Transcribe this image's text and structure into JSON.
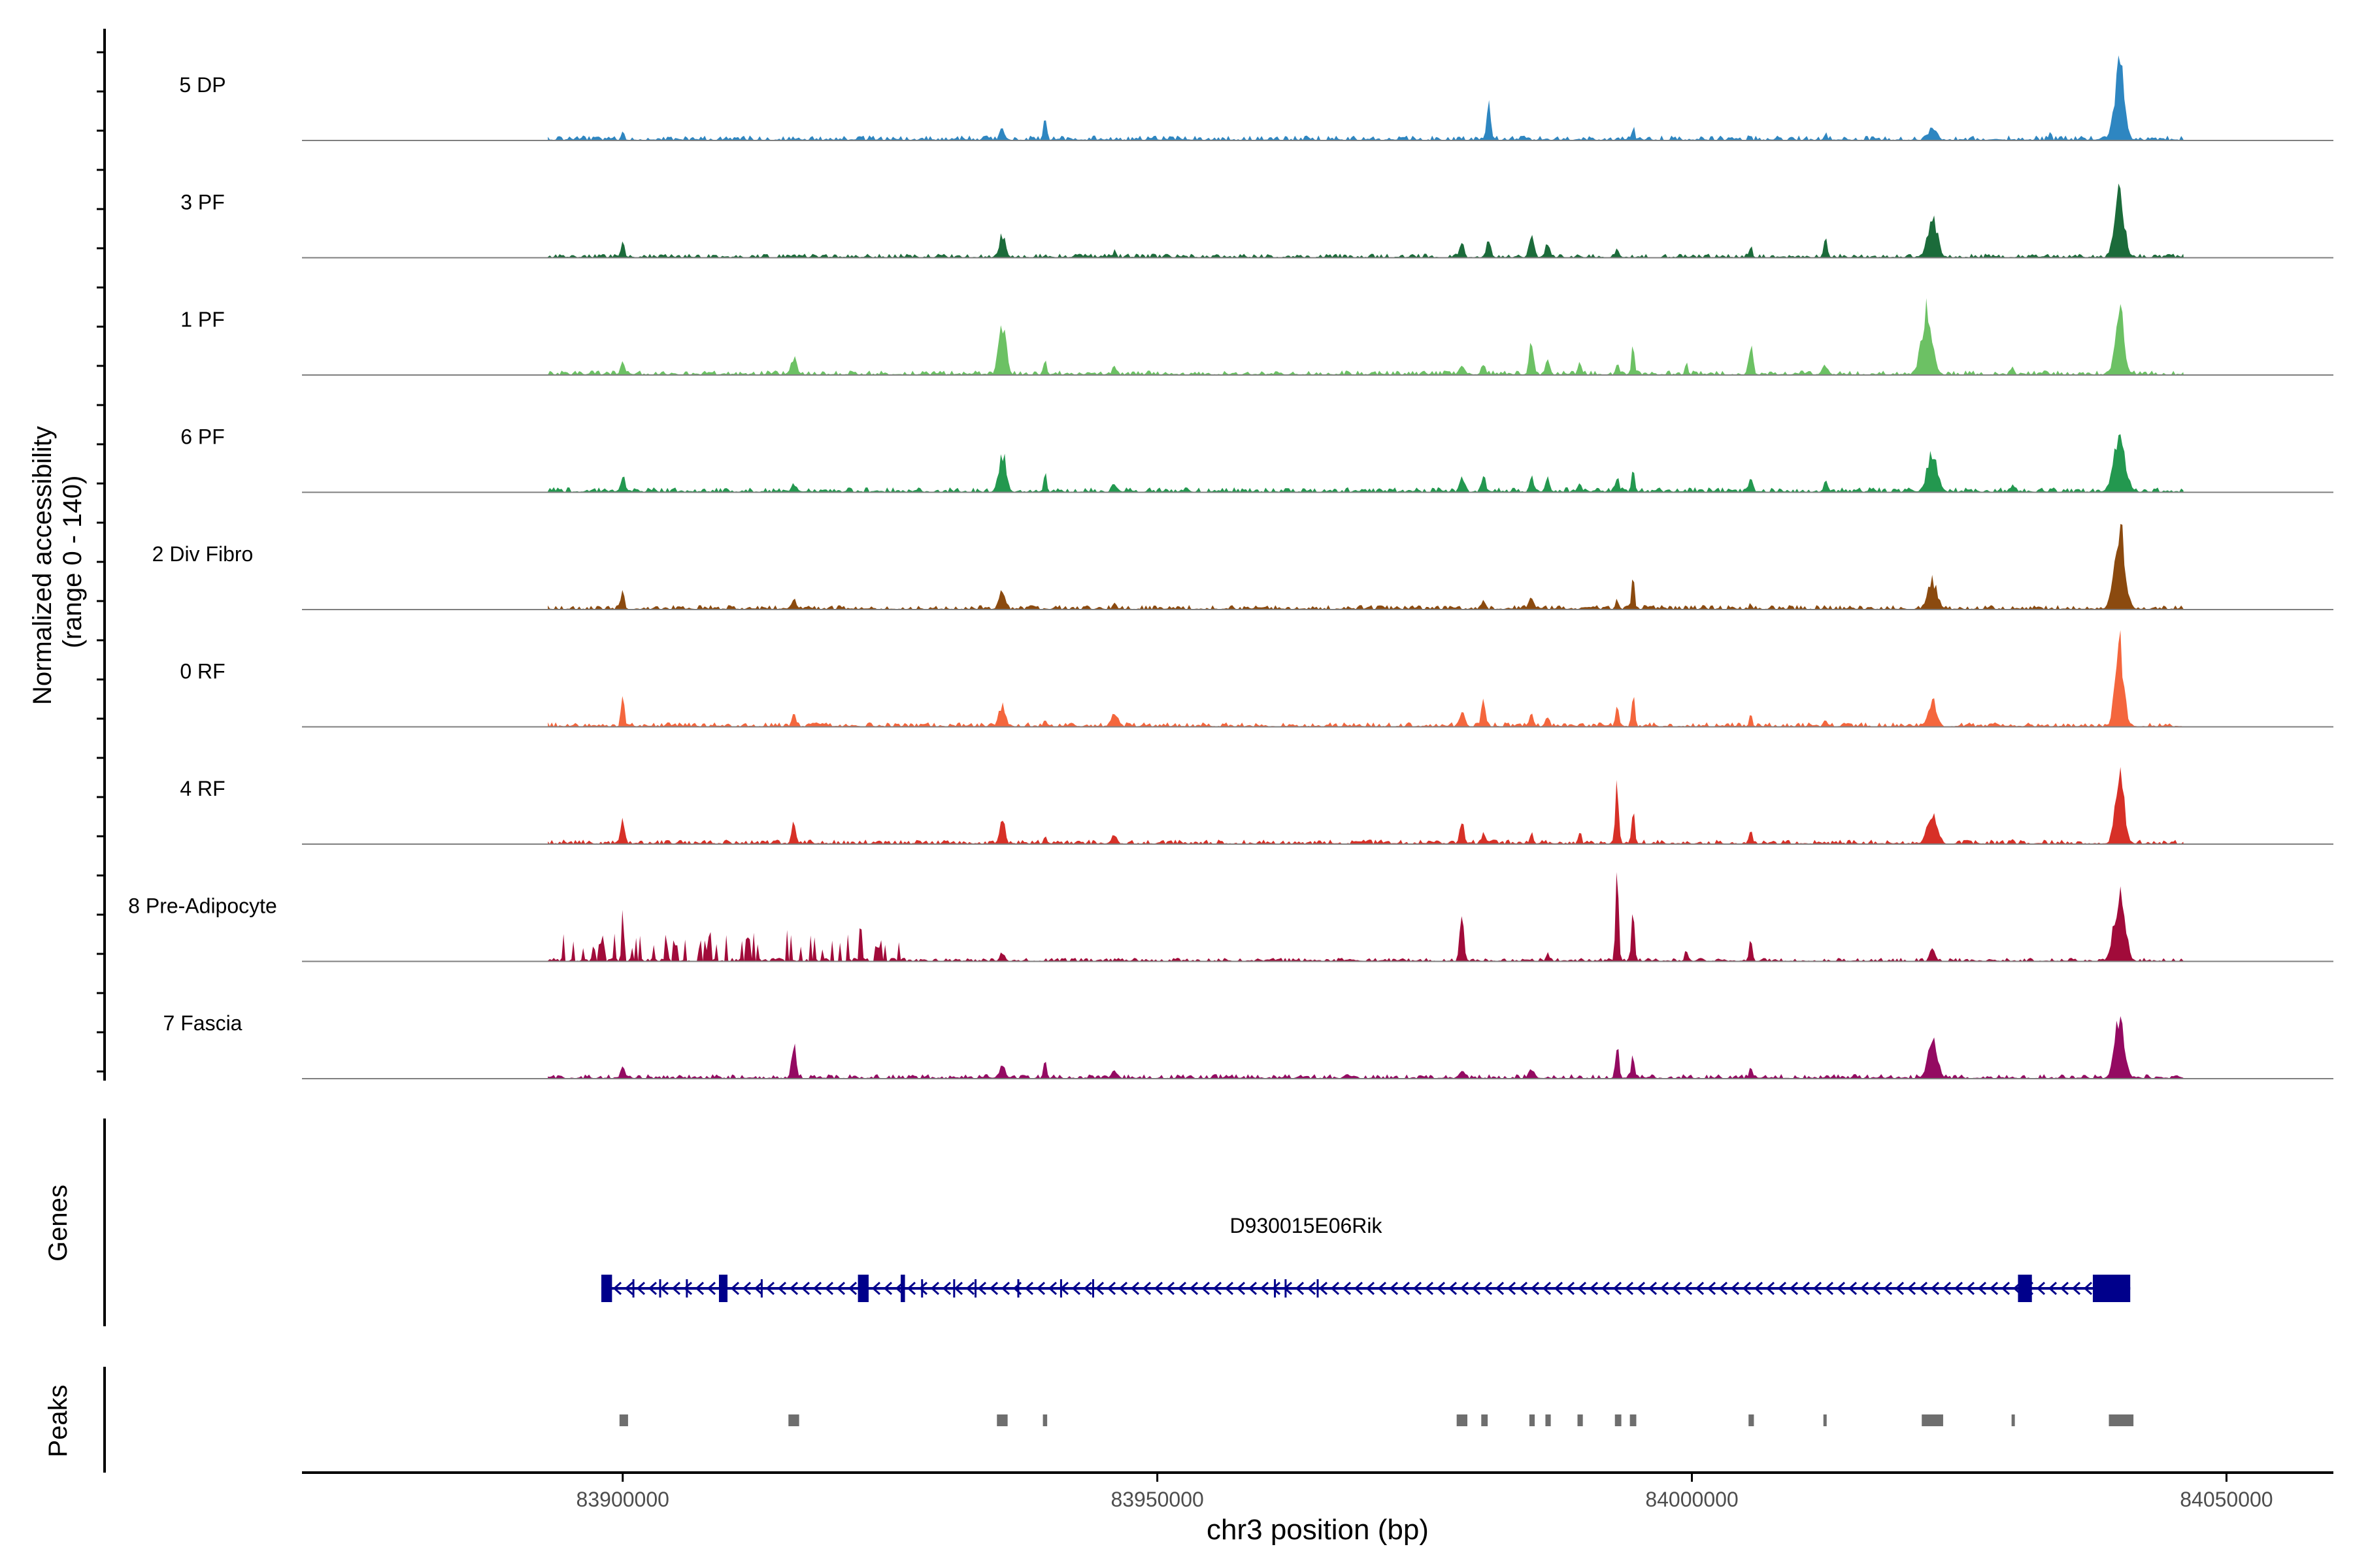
{
  "chart_data": {
    "type": "area",
    "xlabel": "chr3 position (bp)",
    "xlim": [
      83870000,
      84060000
    ],
    "ylabel_line1": "Normalized accessibility",
    "ylabel_line2": "(range 0 - 140)",
    "ylim": [
      0,
      140
    ],
    "x_ticks": [
      {
        "value": 83900000,
        "label": "83900000"
      },
      {
        "value": 83950000,
        "label": "83950000"
      },
      {
        "value": 84000000,
        "label": "84000000"
      },
      {
        "value": 84050000,
        "label": "84050000"
      }
    ],
    "peak_centers": [
      83900000,
      83916000,
      83935500,
      83939500,
      83978500,
      83980500,
      83985000,
      83986500,
      83989500,
      83993000,
      83994500,
      84005500,
      84012500,
      84022500,
      84030000,
      84040000
    ],
    "series": [
      {
        "name": "5 DP",
        "color": "#2e86c1",
        "baseline": 10,
        "peaks": [
          [
            83900000,
            20,
            300
          ],
          [
            83935500,
            22,
            500
          ],
          [
            83939500,
            40,
            350
          ],
          [
            83981000,
            65,
            400
          ],
          [
            83994500,
            26,
            300
          ],
          [
            84012500,
            15,
            300
          ],
          [
            84022500,
            25,
            800
          ],
          [
            84033500,
            18,
            300
          ],
          [
            84040000,
            135,
            900
          ]
        ]
      },
      {
        "name": "3 PF",
        "color": "#1b6b3a",
        "baseline": 8,
        "peaks": [
          [
            83900000,
            38,
            300
          ],
          [
            83935500,
            42,
            600
          ],
          [
            83946000,
            14,
            300
          ],
          [
            83978500,
            36,
            350
          ],
          [
            83981000,
            38,
            400
          ],
          [
            83985000,
            40,
            500
          ],
          [
            83986500,
            30,
            400
          ],
          [
            83993000,
            20,
            350
          ],
          [
            84005500,
            22,
            300
          ],
          [
            84012500,
            35,
            350
          ],
          [
            84022500,
            75,
            900
          ],
          [
            84040000,
            115,
            900
          ]
        ]
      },
      {
        "name": "1 PF",
        "color": "#6cc164",
        "baseline": 9,
        "peaks": [
          [
            83900000,
            30,
            400
          ],
          [
            83916000,
            30,
            600
          ],
          [
            83935500,
            95,
            700
          ],
          [
            83939500,
            32,
            300
          ],
          [
            83946000,
            18,
            400
          ],
          [
            83978500,
            22,
            500
          ],
          [
            83980500,
            20,
            400
          ],
          [
            83985000,
            60,
            400
          ],
          [
            83986500,
            34,
            400
          ],
          [
            83989500,
            24,
            350
          ],
          [
            83993000,
            25,
            300
          ],
          [
            83994500,
            50,
            300
          ],
          [
            83999500,
            22,
            300
          ],
          [
            84005500,
            60,
            400
          ],
          [
            84012500,
            18,
            600
          ],
          [
            84022000,
            125,
            1000
          ],
          [
            84030000,
            18,
            300
          ],
          [
            84040000,
            140,
            800
          ]
        ]
      },
      {
        "name": "6 PF",
        "color": "#23984f",
        "baseline": 10,
        "peaks": [
          [
            83900000,
            32,
            400
          ],
          [
            83916000,
            16,
            500
          ],
          [
            83935500,
            72,
            700
          ],
          [
            83939500,
            34,
            300
          ],
          [
            83946000,
            16,
            500
          ],
          [
            83978500,
            30,
            500
          ],
          [
            83980500,
            32,
            400
          ],
          [
            83985000,
            36,
            400
          ],
          [
            83986500,
            30,
            400
          ],
          [
            83989500,
            20,
            400
          ],
          [
            83993000,
            30,
            350
          ],
          [
            83994500,
            40,
            300
          ],
          [
            84005500,
            28,
            400
          ],
          [
            84012500,
            20,
            400
          ],
          [
            84022500,
            72,
            1000
          ],
          [
            84030000,
            18,
            300
          ],
          [
            84040000,
            95,
            1100
          ]
        ]
      },
      {
        "name": "2 Div Fibro",
        "color": "#8b4a0f",
        "baseline": 9,
        "peaks": [
          [
            83900000,
            42,
            300
          ],
          [
            83916000,
            18,
            500
          ],
          [
            83935500,
            35,
            600
          ],
          [
            83946000,
            12,
            400
          ],
          [
            83980500,
            20,
            400
          ],
          [
            83985000,
            22,
            500
          ],
          [
            83993000,
            18,
            350
          ],
          [
            83994500,
            52,
            300
          ],
          [
            84005500,
            12,
            300
          ],
          [
            84022500,
            52,
            900
          ],
          [
            84040000,
            150,
            1000
          ]
        ]
      },
      {
        "name": "0 RF",
        "color": "#f4663d",
        "baseline": 9,
        "peaks": [
          [
            83900000,
            65,
            300
          ],
          [
            83916000,
            22,
            400
          ],
          [
            83935500,
            42,
            600
          ],
          [
            83939500,
            15,
            300
          ],
          [
            83946000,
            26,
            700
          ],
          [
            83978500,
            28,
            500
          ],
          [
            83980500,
            55,
            400
          ],
          [
            83985000,
            25,
            400
          ],
          [
            83986500,
            18,
            400
          ],
          [
            83993000,
            38,
            350
          ],
          [
            83994500,
            60,
            300
          ],
          [
            84005500,
            24,
            300
          ],
          [
            84012500,
            16,
            300
          ],
          [
            84022500,
            50,
            800
          ],
          [
            84040000,
            150,
            800
          ]
        ]
      },
      {
        "name": "4 RF",
        "color": "#d73027",
        "baseline": 9,
        "peaks": [
          [
            83900000,
            52,
            400
          ],
          [
            83916000,
            38,
            400
          ],
          [
            83935500,
            52,
            500
          ],
          [
            83939500,
            14,
            300
          ],
          [
            83946000,
            18,
            500
          ],
          [
            83978500,
            40,
            400
          ],
          [
            83980500,
            22,
            300
          ],
          [
            83985000,
            22,
            300
          ],
          [
            83989500,
            26,
            300
          ],
          [
            83993000,
            100,
            350
          ],
          [
            83994500,
            60,
            300
          ],
          [
            84005500,
            33,
            300
          ],
          [
            84022500,
            62,
            900
          ],
          [
            84030000,
            12,
            300
          ],
          [
            84040000,
            140,
            800
          ]
        ]
      },
      {
        "name": "8 Pre-Adipocyte",
        "color": "#a10b3a",
        "baseline": 7,
        "peaks": [
          [
            83900000,
            90,
            200
          ],
          [
            83908000,
            30,
            300
          ],
          [
            83924000,
            22,
            400
          ],
          [
            83935500,
            18,
            400
          ],
          [
            83978500,
            80,
            400
          ],
          [
            83986500,
            18,
            300
          ],
          [
            83993000,
            150,
            300
          ],
          [
            83994500,
            90,
            300
          ],
          [
            83999500,
            24,
            300
          ],
          [
            84005500,
            50,
            300
          ],
          [
            84022500,
            26,
            500
          ],
          [
            84040000,
            125,
            1000
          ]
        ]
      },
      {
        "name": "7 Fascia",
        "color": "#940a62",
        "baseline": 9,
        "peaks": [
          [
            83900000,
            22,
            400
          ],
          [
            83916000,
            65,
            400
          ],
          [
            83935500,
            22,
            600
          ],
          [
            83939500,
            32,
            300
          ],
          [
            83946000,
            14,
            600
          ],
          [
            83978500,
            18,
            500
          ],
          [
            83985000,
            20,
            500
          ],
          [
            83993000,
            65,
            350
          ],
          [
            83994500,
            50,
            300
          ],
          [
            84005500,
            26,
            300
          ],
          [
            84022500,
            70,
            900
          ],
          [
            84040000,
            125,
            900
          ]
        ]
      }
    ],
    "noise_ranges": {
      "8 Pre-Adipocyte": [
        83893000,
        83926000
      ]
    },
    "genes": {
      "title": "Genes",
      "gene_label": "D930015E06Rik",
      "span": [
        83898000,
        84041000
      ],
      "strand": "-",
      "exons": [
        [
          83898000,
          83899000
        ],
        [
          83909000,
          83909800
        ],
        [
          83922000,
          83923000
        ],
        [
          83926000,
          83926400
        ],
        [
          84030500,
          84031800
        ],
        [
          84037500,
          84041000
        ]
      ],
      "color": "#00008b"
    },
    "peaks_track": {
      "title": "Peaks",
      "color": "#6e6e6e",
      "regions": [
        [
          83899700,
          83900500
        ],
        [
          83915500,
          83916500
        ],
        [
          83935000,
          83936000
        ],
        [
          83939300,
          83939700
        ],
        [
          83978000,
          83979000
        ],
        [
          83980300,
          83980900
        ],
        [
          83984800,
          83985300
        ],
        [
          83986300,
          83986800
        ],
        [
          83989300,
          83989800
        ],
        [
          83992800,
          83993400
        ],
        [
          83994200,
          83994800
        ],
        [
          84005300,
          84005800
        ],
        [
          84012300,
          84012600
        ],
        [
          84021500,
          84023500
        ],
        [
          84029900,
          84030200
        ],
        [
          84039000,
          84041300
        ]
      ]
    }
  }
}
